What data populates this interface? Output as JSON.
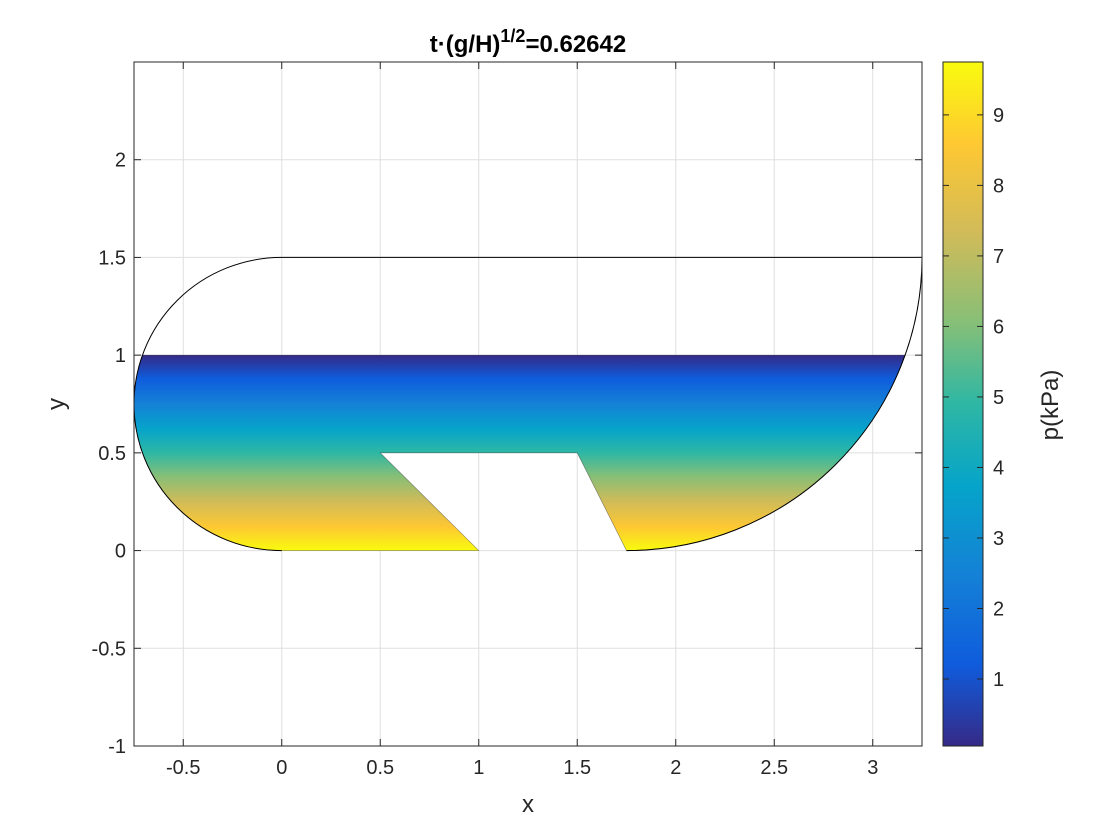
{
  "chart_data": {
    "type": "heatmap",
    "title": {
      "prefix": "t·(g/H)",
      "superscript": "1/2",
      "suffix": "=0.62642"
    },
    "xlabel": "x",
    "ylabel": "y",
    "xlim": [
      -0.75,
      3.25
    ],
    "ylim": [
      -1,
      2.5
    ],
    "xticks": [
      -0.5,
      0,
      0.5,
      1,
      1.5,
      2,
      2.5,
      3
    ],
    "xtick_labels": [
      "-0.5",
      "0",
      "0.5",
      "1",
      "1.5",
      "2",
      "2.5",
      "3"
    ],
    "yticks": [
      -1,
      -0.5,
      0,
      0.5,
      1,
      1.5,
      2
    ],
    "ytick_labels": [
      "-1",
      "-0.5",
      "0",
      "0.5",
      "1",
      "1.5",
      "2"
    ],
    "grid": true,
    "colormap": "parula",
    "colorbar": {
      "label": "p(kPa)",
      "range": [
        0.05,
        9.75
      ],
      "ticks": [
        1,
        2,
        3,
        4,
        5,
        6,
        7,
        8,
        9
      ],
      "tick_labels": [
        "1",
        "2",
        "3",
        "4",
        "5",
        "6",
        "7",
        "8",
        "9"
      ]
    },
    "pressure_field": {
      "description": "hydrostatic: pressure increases downward from free surface",
      "free_surface_y": 1.0,
      "y_values": [
        1.0,
        0.75,
        0.5,
        0.25,
        0.0
      ],
      "p_values": [
        0.05,
        2.4,
        4.9,
        7.3,
        9.75
      ]
    },
    "container_outline": {
      "left_arc_center": [
        0,
        0.75
      ],
      "left_arc_radius": 0.75,
      "top_y": 1.5,
      "top_x_range": [
        0,
        3.25
      ],
      "right_arc_center": [
        1.75,
        1.5
      ],
      "right_arc_radius": 1.5
    },
    "fluid_region": {
      "top_y": 1.0,
      "bottom_y": 0.0,
      "bottom_segments": [
        [
          0,
          1
        ],
        [
          1.75,
          1.75
        ]
      ],
      "obstacle_polygon": [
        [
          1,
          0
        ],
        [
          0.5,
          0.5
        ],
        [
          1.5,
          0.5
        ],
        [
          1.75,
          0
        ]
      ]
    },
    "colors": {
      "axis": "#262626",
      "grid": "#dfdfdf",
      "outline": "#000000"
    }
  }
}
